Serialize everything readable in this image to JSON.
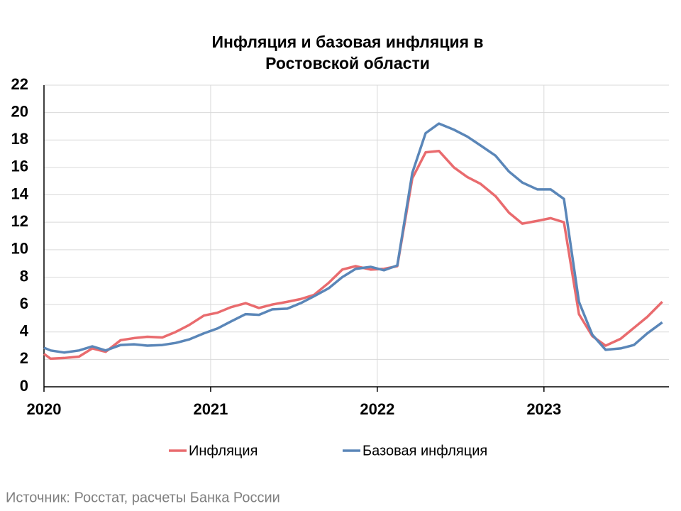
{
  "chart_data": {
    "type": "line",
    "title": "Инфляция и базовая инфляция в Ростовской области",
    "source": "Источник: Росстат, расчеты Банка России",
    "x": [
      2020.0,
      2020.04,
      2020.12,
      2020.21,
      2020.29,
      2020.37,
      2020.46,
      2020.54,
      2020.62,
      2020.71,
      2020.79,
      2020.87,
      2020.96,
      2021.04,
      2021.12,
      2021.21,
      2021.29,
      2021.37,
      2021.46,
      2021.54,
      2021.62,
      2021.71,
      2021.79,
      2021.87,
      2021.96,
      2022.04,
      2022.12,
      2022.21,
      2022.29,
      2022.37,
      2022.46,
      2022.54,
      2022.62,
      2022.71,
      2022.79,
      2022.87,
      2022.96,
      2023.04,
      2023.12,
      2023.21,
      2023.29,
      2023.37,
      2023.46,
      2023.54,
      2023.62,
      2023.71
    ],
    "series": [
      {
        "name": "Инфляция",
        "color": "#e96b6e",
        "values": [
          2.4,
          2.05,
          2.1,
          2.2,
          2.8,
          2.55,
          3.4,
          3.55,
          3.65,
          3.6,
          4.0,
          4.5,
          5.2,
          5.4,
          5.8,
          6.1,
          5.75,
          6.0,
          6.2,
          6.4,
          6.7,
          7.6,
          8.55,
          8.8,
          8.55,
          8.6,
          8.8,
          15.2,
          17.1,
          17.2,
          16.0,
          15.3,
          14.8,
          13.9,
          12.7,
          11.9,
          12.1,
          12.3,
          12.0,
          5.3,
          3.7,
          3.0,
          3.5,
          4.3,
          5.1,
          6.2
        ]
      },
      {
        "name": "Базовая инфляция",
        "color": "#5a86b8",
        "values": [
          2.85,
          2.65,
          2.5,
          2.65,
          2.95,
          2.65,
          3.05,
          3.1,
          3.0,
          3.05,
          3.2,
          3.45,
          3.9,
          4.25,
          4.75,
          5.3,
          5.25,
          5.65,
          5.7,
          6.1,
          6.6,
          7.2,
          8.0,
          8.6,
          8.75,
          8.5,
          8.85,
          15.6,
          18.5,
          19.2,
          18.75,
          18.25,
          17.6,
          16.85,
          15.7,
          14.9,
          14.4,
          14.4,
          13.7,
          6.2,
          3.8,
          2.7,
          2.8,
          3.05,
          3.9,
          4.7
        ]
      }
    ],
    "xlim": [
      2020,
      2023.75
    ],
    "xticks": [
      2020,
      2021,
      2022,
      2023
    ],
    "ylim": [
      0,
      22
    ],
    "yticks": [
      0,
      2,
      4,
      6,
      8,
      10,
      12,
      14,
      16,
      18,
      20,
      22
    ],
    "grid": true,
    "legend": "bottom"
  }
}
